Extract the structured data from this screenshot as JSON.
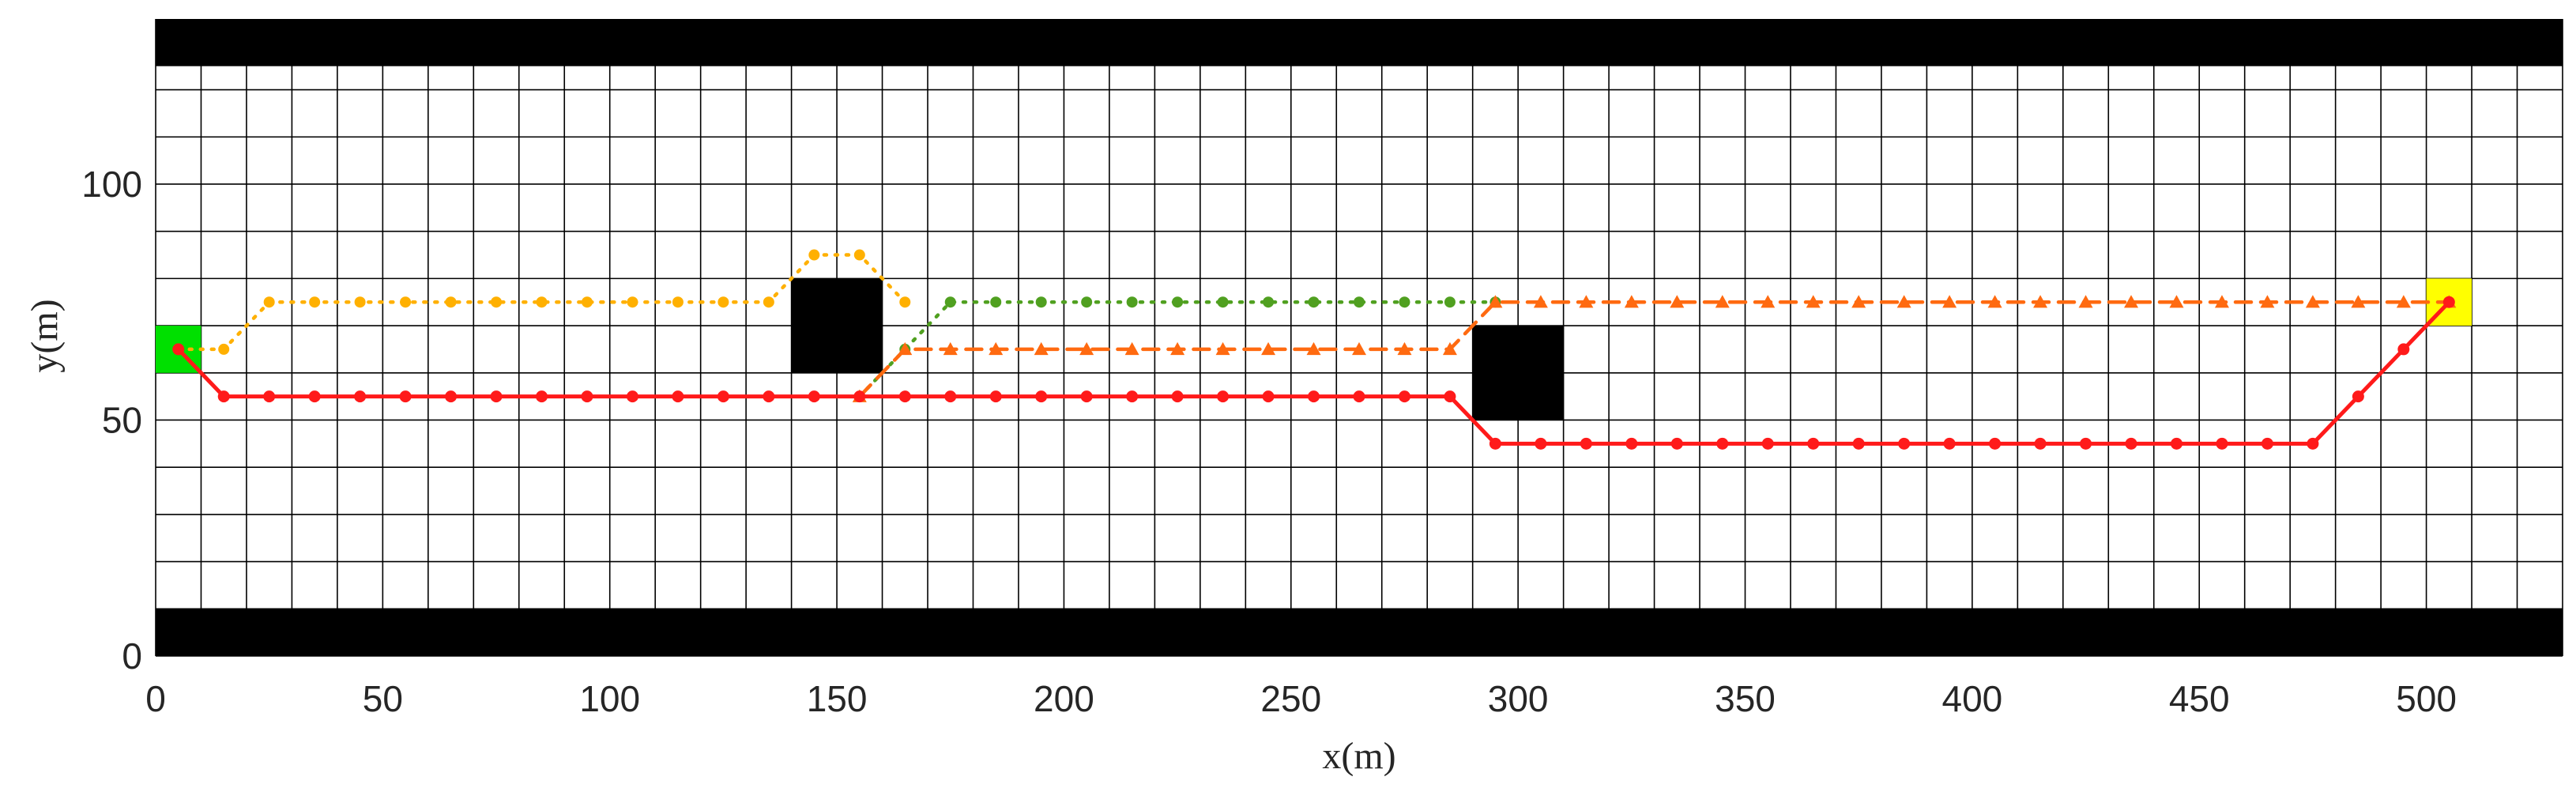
{
  "chart_data": {
    "type": "line",
    "title": "",
    "xlabel": "x(m)",
    "ylabel": "y(m)",
    "xlim": [
      0,
      530
    ],
    "ylim": [
      0,
      135
    ],
    "xticks": [
      0,
      50,
      100,
      150,
      200,
      250,
      300,
      350,
      400,
      450,
      500
    ],
    "yticks": [
      0,
      50,
      100
    ],
    "grid": true,
    "grid_step": 10,
    "colors": {
      "grid": "#000000",
      "obstacle": "#000000",
      "start": "#00e000",
      "goal": "#ffff00",
      "orange_dotted": "#ffb000",
      "green_dotted": "#50a020",
      "orange_dashed": "#ff6a10",
      "red_solid": "#ff1a1a"
    },
    "walls": [
      {
        "x": [
          0,
          530
        ],
        "y": [
          125,
          135
        ]
      },
      {
        "x": [
          0,
          530
        ],
        "y": [
          0,
          10
        ]
      }
    ],
    "obstacles": [
      {
        "x": [
          140,
          160
        ],
        "y": [
          60,
          80
        ]
      },
      {
        "x": [
          290,
          310
        ],
        "y": [
          50,
          70
        ]
      }
    ],
    "start": {
      "x": [
        0,
        10
      ],
      "y": [
        60,
        70
      ]
    },
    "goal": {
      "x": [
        500,
        510
      ],
      "y": [
        70,
        80
      ]
    },
    "series": [
      {
        "style": "dotted",
        "marker": "dot",
        "color": "#ffb000",
        "x": [
          5,
          15,
          25,
          35,
          45,
          55,
          65,
          75,
          85,
          95,
          105,
          115,
          125,
          135,
          145,
          155,
          165
        ],
        "y": [
          65,
          65,
          75,
          75,
          75,
          75,
          75,
          75,
          75,
          75,
          75,
          75,
          75,
          75,
          85,
          85,
          75
        ]
      },
      {
        "style": "dotted",
        "marker": "dot",
        "color": "#50a020",
        "x": [
          155,
          165,
          175,
          185,
          195,
          205,
          215,
          225,
          235,
          245,
          255,
          265,
          275,
          285,
          295
        ],
        "y": [
          55,
          65,
          75,
          75,
          75,
          75,
          75,
          75,
          75,
          75,
          75,
          75,
          75,
          75,
          75
        ]
      },
      {
        "style": "dashed",
        "marker": "triangle",
        "color": "#ff6a10",
        "x": [
          155,
          165,
          175,
          185,
          195,
          205,
          215,
          225,
          235,
          245,
          255,
          265,
          275,
          285,
          295,
          305,
          315,
          325,
          335,
          345,
          355,
          365,
          375,
          385,
          395,
          405,
          415,
          425,
          435,
          445,
          455,
          465,
          475,
          485,
          495,
          505
        ],
        "y": [
          55,
          65,
          65,
          65,
          65,
          65,
          65,
          65,
          65,
          65,
          65,
          65,
          65,
          65,
          75,
          75,
          75,
          75,
          75,
          75,
          75,
          75,
          75,
          75,
          75,
          75,
          75,
          75,
          75,
          75,
          75,
          75,
          75,
          75,
          75,
          75
        ]
      },
      {
        "style": "solid",
        "marker": "dot",
        "color": "#ff1a1a",
        "x": [
          5,
          15,
          25,
          35,
          45,
          55,
          65,
          75,
          85,
          95,
          105,
          115,
          125,
          135,
          145,
          155,
          165,
          175,
          185,
          195,
          205,
          215,
          225,
          235,
          245,
          255,
          265,
          275,
          285,
          295,
          305,
          315,
          325,
          335,
          345,
          355,
          365,
          375,
          385,
          395,
          405,
          415,
          425,
          435,
          445,
          455,
          465,
          475,
          485,
          495,
          505
        ],
        "y": [
          65,
          55,
          55,
          55,
          55,
          55,
          55,
          55,
          55,
          55,
          55,
          55,
          55,
          55,
          55,
          55,
          55,
          55,
          55,
          55,
          55,
          55,
          55,
          55,
          55,
          55,
          55,
          55,
          55,
          45,
          45,
          45,
          45,
          45,
          45,
          45,
          45,
          45,
          45,
          45,
          45,
          45,
          45,
          45,
          45,
          45,
          45,
          45,
          55,
          65,
          75
        ]
      }
    ]
  }
}
